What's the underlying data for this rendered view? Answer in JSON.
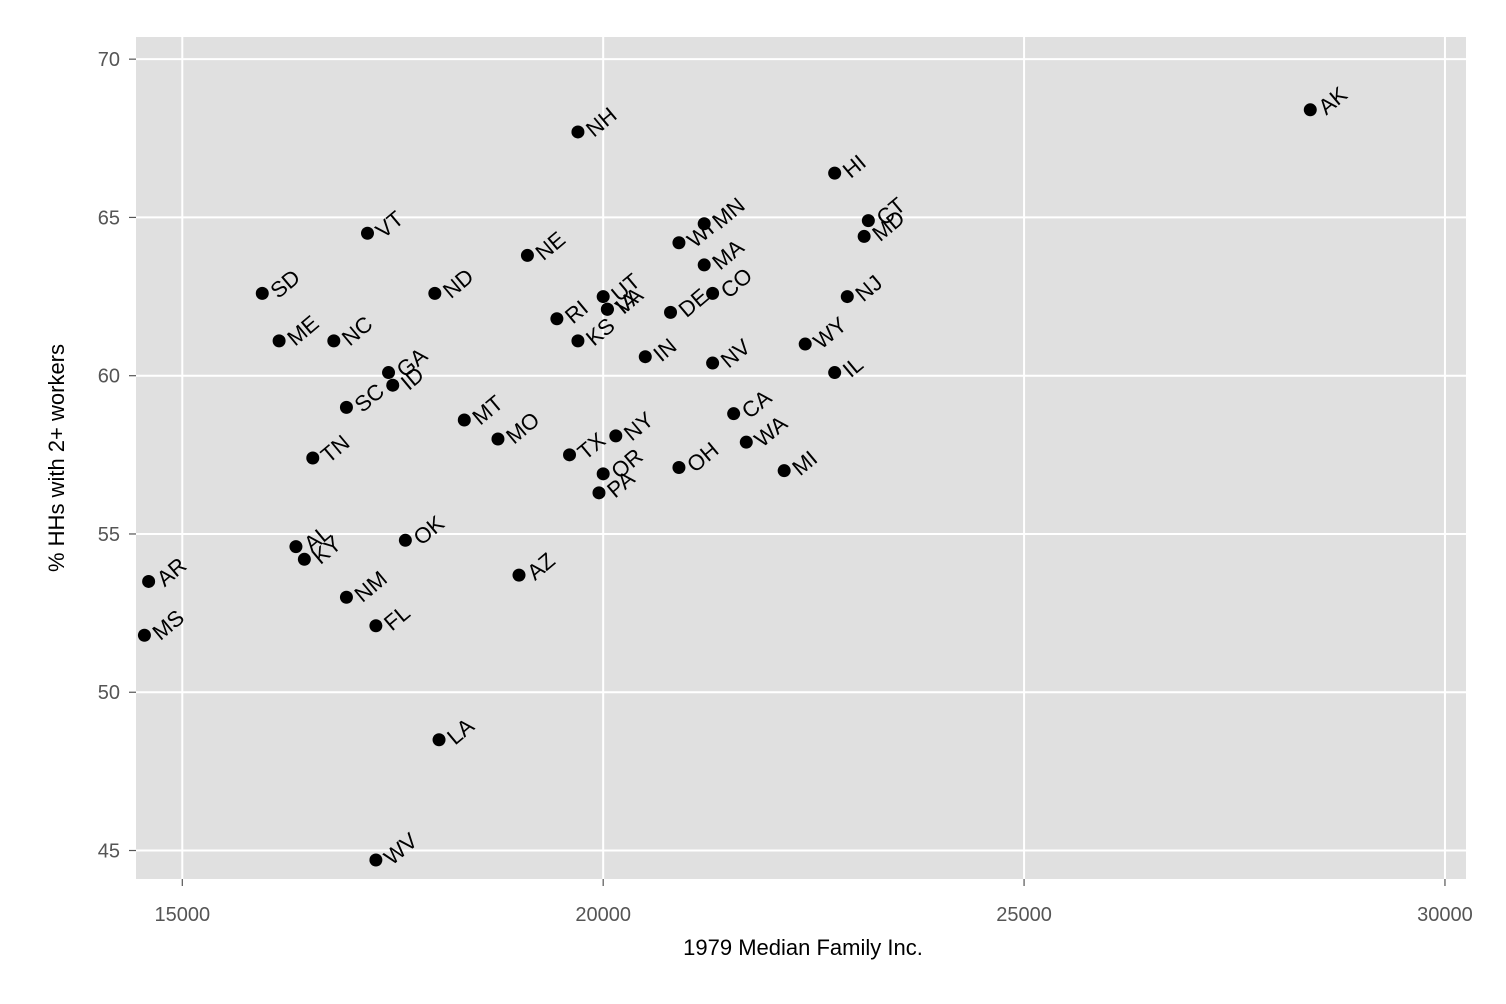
{
  "chart_data": {
    "type": "scatter",
    "xlabel": "1979 Median Family Inc.",
    "ylabel": "% HHs with 2+ workers",
    "xlim": [
      14450,
      30250
    ],
    "ylim": [
      44.1,
      70.7
    ],
    "x_ticks": [
      15000,
      20000,
      25000,
      30000
    ],
    "y_ticks": [
      45,
      50,
      55,
      60,
      65,
      70
    ],
    "x_tick_labels": [
      "15000",
      "20000",
      "25000",
      "30000"
    ],
    "y_tick_labels": [
      "45",
      "50",
      "55",
      "60",
      "65",
      "70"
    ],
    "grid": true,
    "points": [
      {
        "label": "AK",
        "x": 28400,
        "y": 68.4
      },
      {
        "label": "NH",
        "x": 19700,
        "y": 67.7
      },
      {
        "label": "HI",
        "x": 22750,
        "y": 66.4
      },
      {
        "label": "CT",
        "x": 23150,
        "y": 64.9
      },
      {
        "label": "MN",
        "x": 21200,
        "y": 64.8
      },
      {
        "label": "VT",
        "x": 17200,
        "y": 64.5
      },
      {
        "label": "MD",
        "x": 23100,
        "y": 64.4
      },
      {
        "label": "WI",
        "x": 20900,
        "y": 64.2
      },
      {
        "label": "NE",
        "x": 19100,
        "y": 63.8
      },
      {
        "label": "MA",
        "x": 21200,
        "y": 63.5
      },
      {
        "label": "SD",
        "x": 15950,
        "y": 62.6
      },
      {
        "label": "ND",
        "x": 18000,
        "y": 62.6
      },
      {
        "label": "CO",
        "x": 21300,
        "y": 62.6
      },
      {
        "label": "UT",
        "x": 20000,
        "y": 62.5
      },
      {
        "label": "NJ",
        "x": 22900,
        "y": 62.5
      },
      {
        "label": "VA",
        "x": 20050,
        "y": 62.1
      },
      {
        "label": "DE",
        "x": 20800,
        "y": 62.0
      },
      {
        "label": "RI",
        "x": 19450,
        "y": 61.8
      },
      {
        "label": "ME",
        "x": 16150,
        "y": 61.1
      },
      {
        "label": "NC",
        "x": 16800,
        "y": 61.1
      },
      {
        "label": "KS",
        "x": 19700,
        "y": 61.1
      },
      {
        "label": "IA",
        "x": 20050,
        "y": 62.1
      },
      {
        "label": "WY",
        "x": 22400,
        "y": 61.0
      },
      {
        "label": "IN",
        "x": 20500,
        "y": 60.6
      },
      {
        "label": "NV",
        "x": 21300,
        "y": 60.4
      },
      {
        "label": "GA",
        "x": 17450,
        "y": 60.1
      },
      {
        "label": "IL",
        "x": 22750,
        "y": 60.1
      },
      {
        "label": "ID",
        "x": 17500,
        "y": 59.7
      },
      {
        "label": "SC",
        "x": 16950,
        "y": 59.0
      },
      {
        "label": "CA",
        "x": 21550,
        "y": 58.8
      },
      {
        "label": "MT",
        "x": 18350,
        "y": 58.6
      },
      {
        "label": "NY",
        "x": 20150,
        "y": 58.1
      },
      {
        "label": "MO",
        "x": 18750,
        "y": 58.0
      },
      {
        "label": "WA",
        "x": 21700,
        "y": 57.9
      },
      {
        "label": "TX",
        "x": 19600,
        "y": 57.5
      },
      {
        "label": "TN",
        "x": 16550,
        "y": 57.4
      },
      {
        "label": "OH",
        "x": 20900,
        "y": 57.1
      },
      {
        "label": "MI",
        "x": 22150,
        "y": 57.0
      },
      {
        "label": "OR",
        "x": 20000,
        "y": 56.9
      },
      {
        "label": "PA",
        "x": 19950,
        "y": 56.3
      },
      {
        "label": "OK",
        "x": 17650,
        "y": 54.8
      },
      {
        "label": "AL",
        "x": 16350,
        "y": 54.6
      },
      {
        "label": "KY",
        "x": 16450,
        "y": 54.2
      },
      {
        "label": "AZ",
        "x": 19000,
        "y": 53.7
      },
      {
        "label": "AR",
        "x": 14600,
        "y": 53.5
      },
      {
        "label": "NM",
        "x": 16950,
        "y": 53.0
      },
      {
        "label": "FL",
        "x": 17300,
        "y": 52.1
      },
      {
        "label": "MS",
        "x": 14550,
        "y": 51.8
      },
      {
        "label": "LA",
        "x": 18050,
        "y": 48.5
      },
      {
        "label": "WV",
        "x": 17300,
        "y": 44.7
      }
    ]
  }
}
